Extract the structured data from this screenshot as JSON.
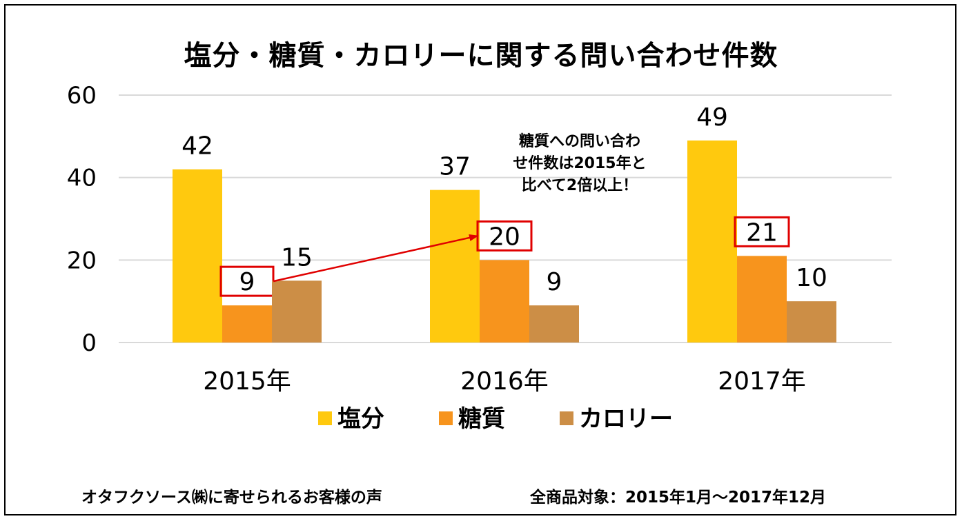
{
  "chart_data": {
    "type": "bar",
    "title": "塩分・糖質・カロリーに関する問い合わせ件数",
    "categories": [
      "2015年",
      "2016年",
      "2017年"
    ],
    "series": [
      {
        "name": "塩分",
        "color": "#FFC90E",
        "values": [
          42,
          37,
          49
        ]
      },
      {
        "name": "糖質",
        "color": "#F7941D",
        "values": [
          9,
          20,
          21
        ]
      },
      {
        "name": "カロリー",
        "color": "#CC8E46",
        "values": [
          15,
          9,
          10
        ]
      }
    ],
    "ylim": [
      0,
      60
    ],
    "yticks": [
      0,
      20,
      40,
      60
    ],
    "grid": true,
    "legend": "bottom",
    "highlight_series": "糖質",
    "highlight_color": "#E00000",
    "annotation": {
      "lines": [
        "糖質への問い合わ",
        "せ件数は2015年と",
        "比べて2倍以上！"
      ],
      "arrow_from": "2015年",
      "arrow_to": "2016年"
    }
  },
  "footer": {
    "source": "オタフクソース㈱に寄せられるお客様の声",
    "period": "全商品対象：2015年1月～2017年12月"
  }
}
